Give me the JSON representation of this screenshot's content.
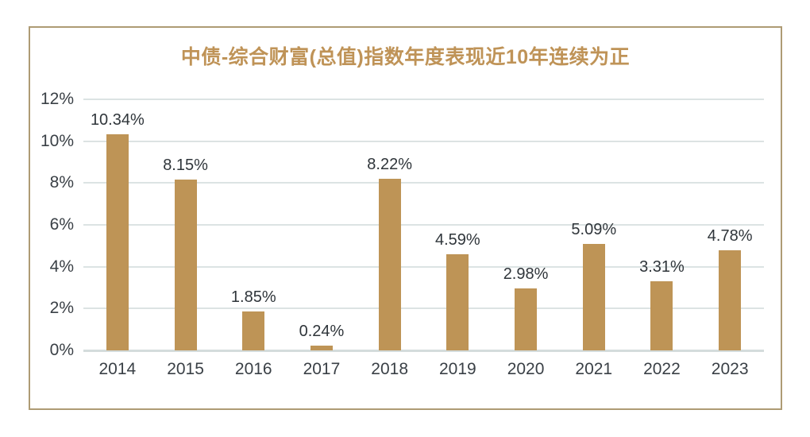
{
  "title": "中债-综合财富(总值)指数年度表现近10年连续为正",
  "colors": {
    "bar": "#be9456",
    "title": "#bf9357",
    "axis_text": "#3a4046",
    "data_label_text": "#2f353a",
    "gridline": "#dce3e3",
    "frame_border": "#ae9b74",
    "background": "#ffffff"
  },
  "chart_data": {
    "type": "bar",
    "title": "中债-综合财富(总值)指数年度表现近10年连续为正",
    "categories": [
      "2014",
      "2015",
      "2016",
      "2017",
      "2018",
      "2019",
      "2020",
      "2021",
      "2022",
      "2023"
    ],
    "values": [
      10.34,
      8.15,
      1.85,
      0.24,
      8.22,
      4.59,
      2.98,
      5.09,
      3.31,
      4.78
    ],
    "data_labels": [
      "10.34%",
      "8.15%",
      "1.85%",
      "0.24%",
      "8.22%",
      "4.59%",
      "2.98%",
      "5.09%",
      "3.31%",
      "4.78%"
    ],
    "y_ticks": [
      "12%",
      "10%",
      "8%",
      "6%",
      "4%",
      "2%",
      "0%"
    ],
    "y_tick_values": [
      12,
      10,
      8,
      6,
      4,
      2,
      0
    ],
    "ylim": [
      0,
      12
    ],
    "xlabel": "",
    "ylabel": "",
    "grid": true,
    "legend": "none",
    "data_labels_shown": true
  }
}
